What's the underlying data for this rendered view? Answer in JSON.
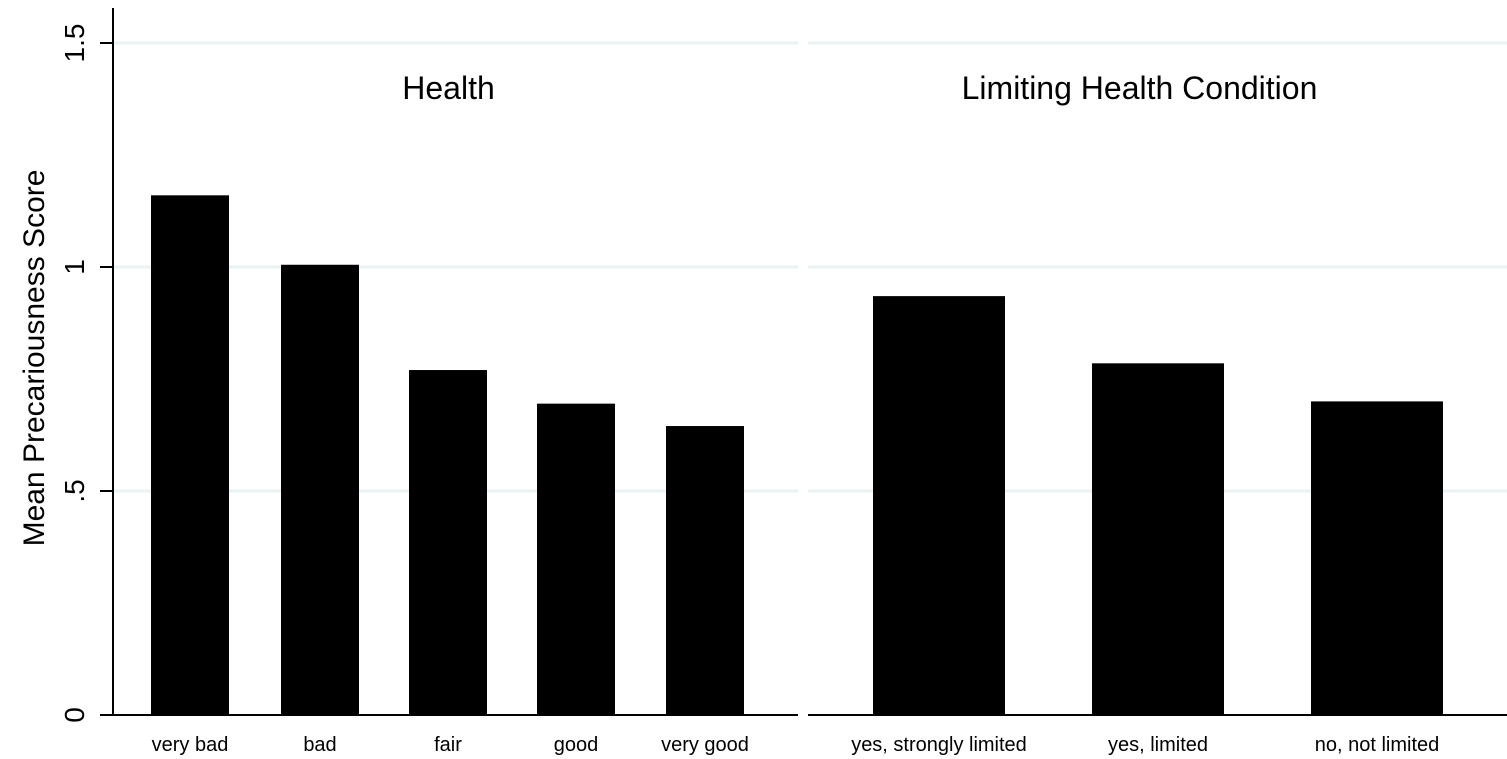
{
  "chart_data": {
    "type": "bar",
    "ylabel": "Mean Precariousness Score",
    "ylim": [
      0,
      1.5
    ],
    "yticks": [
      {
        "value": 0,
        "label": "0"
      },
      {
        "value": 0.5,
        "label": ".5"
      },
      {
        "value": 1,
        "label": "1"
      },
      {
        "value": 1.5,
        "label": "1.5"
      }
    ],
    "grid": true,
    "bar_color": "#000000",
    "grid_color": "#eaf2f3",
    "panels": [
      {
        "title": "Health",
        "categories": [
          "very bad",
          "bad",
          "fair",
          "good",
          "very good"
        ],
        "values": [
          1.16,
          1.005,
          0.77,
          0.695,
          0.645
        ]
      },
      {
        "title": "Limiting Health Condition",
        "categories": [
          "yes, strongly limited",
          "yes, limited",
          "no, not limited"
        ],
        "values": [
          0.935,
          0.785,
          0.7
        ]
      }
    ]
  }
}
